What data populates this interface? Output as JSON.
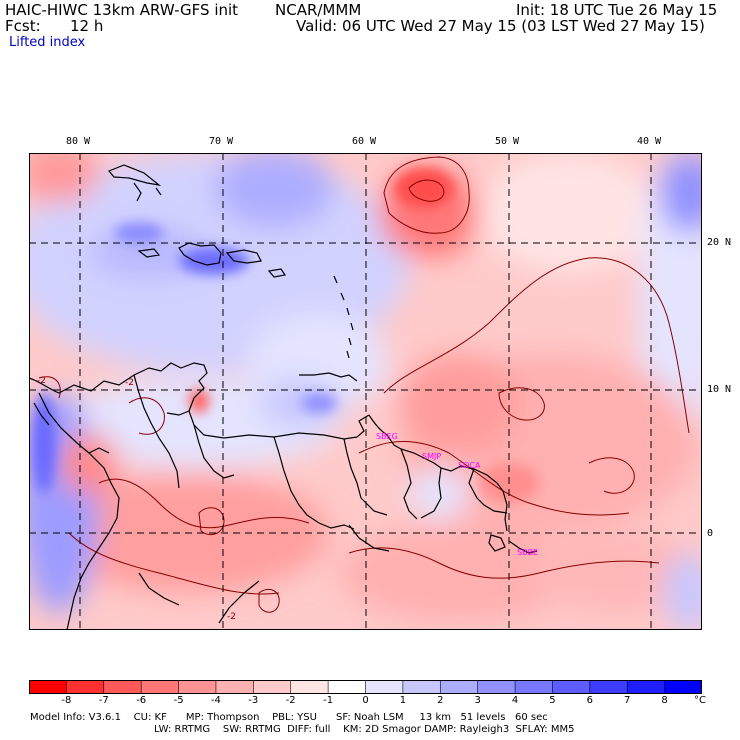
{
  "header": {
    "model_title": "HAIC-HIWC 13km ARW-GFS init",
    "org": "NCAR/MMM",
    "init": "Init: 18 UTC Tue 26 May 15",
    "fcst_label": "Fcst:",
    "fcst_value": "12 h",
    "valid": "Valid: 06 UTC Wed 27 May 15 (03 LST Wed 27 May 15)",
    "field": "Lifted index"
  },
  "map": {
    "lon_labels": [
      "80 W",
      "70 W",
      "60 W",
      "50 W",
      "40 W"
    ],
    "lat_labels": [
      "20 N",
      "10 N",
      "0"
    ],
    "contour_labels": [
      "-2",
      "-2",
      "-2"
    ],
    "stations": [
      "SBEG",
      "SMJP",
      "SOCA",
      "SBBE"
    ]
  },
  "colorbar": {
    "labels": [
      "-8",
      "-7",
      "-6",
      "-5",
      "-4",
      "-3",
      "-2",
      "-1",
      "0",
      "1",
      "2",
      "3",
      "4",
      "5",
      "6",
      "7",
      "8"
    ],
    "unit": "°C",
    "colors": [
      "#ff0000",
      "#ff3030",
      "#ff5a5a",
      "#ff7777",
      "#ff9393",
      "#ffb0b0",
      "#ffcaca",
      "#ffe4e4",
      "#ffffff",
      "#e4e4ff",
      "#c8c8ff",
      "#adadff",
      "#9292ff",
      "#7777ff",
      "#5c5cff",
      "#3d3dff",
      "#1e1eff",
      "#0000ff"
    ]
  },
  "model_info": {
    "line1": "Model Info: V3.6.1    CU: KF      MP: Thompson    PBL: YSU      SF: Noah LSM     13 km   51 levels   60 sec",
    "line2": "LW: RRTMG    SW: RRTMG  DIFF: full    KM: 2D Smagor DAMP: Rayleigh3  SFLAY: MM5"
  }
}
